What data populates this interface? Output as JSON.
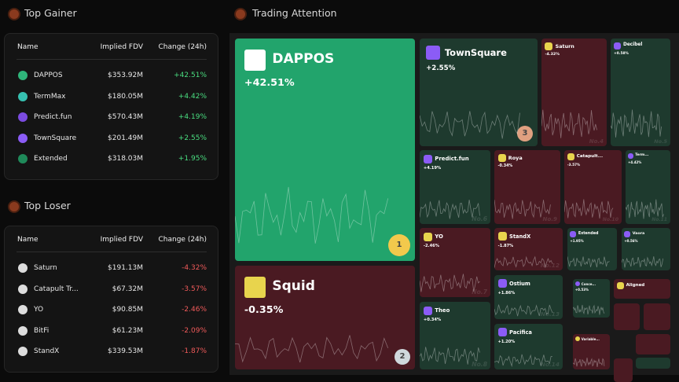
{
  "gainer": {
    "title": "Top Gainer",
    "columns": [
      "Name",
      "Implied FDV",
      "Change (24h)"
    ],
    "rows": [
      [
        "DAPPOS",
        "$353.92M",
        "+42.51%"
      ],
      [
        "TermMax",
        "$180.05M",
        "+4.42%"
      ],
      [
        "Predict.fun",
        "$570.43M",
        "+4.19%"
      ],
      [
        "TownSquare",
        "$201.49M",
        "+2.55%"
      ],
      [
        "Extended",
        "$318.03M",
        "+1.95%"
      ]
    ]
  },
  "loser": {
    "title": "Top Loser",
    "columns": [
      "Name",
      "Implied FDV",
      "Change (24h)"
    ],
    "rows": [
      [
        "Saturn",
        "$191.13M",
        "-4.32%"
      ],
      [
        "Catapult Tr...",
        "$67.32M",
        "-3.57%"
      ],
      [
        "YO",
        "$90.85M",
        "-2.46%"
      ],
      [
        "BitFi",
        "$61.23M",
        "-2.09%"
      ],
      [
        "StandX",
        "$339.53M",
        "-1.87%"
      ]
    ]
  },
  "attention": {
    "title": "Trading Attention",
    "tiles": [
      {
        "name": "DAPPOS",
        "change": "+42.51%",
        "badge": "1",
        "trend": "up"
      },
      {
        "name": "Squid",
        "change": "-0.35%",
        "badge": "2",
        "trend": "down"
      },
      {
        "name": "TownSquare",
        "change": "+2.55%",
        "badge": "3",
        "trend": "up"
      },
      {
        "name": "Saturn",
        "change": "-4.32%",
        "rank": "No.4",
        "trend": "down"
      },
      {
        "name": "Decibel",
        "change": "+0.58%",
        "rank": "No.5",
        "trend": "up"
      },
      {
        "name": "Predict.fun",
        "change": "+4.19%",
        "rank": "No.6",
        "trend": "up"
      },
      {
        "name": "YO",
        "change": "-2.46%",
        "rank": "No.7",
        "trend": "down"
      },
      {
        "name": "Theo",
        "change": "+0.34%",
        "rank": "No.8",
        "trend": "up"
      },
      {
        "name": "Roya",
        "change": "-0.34%",
        "rank": "No.9",
        "trend": "down"
      },
      {
        "name": "Catapult...",
        "change": "-3.57%",
        "rank": "No.10",
        "trend": "down"
      },
      {
        "name": "Term...",
        "change": "+4.42%",
        "rank": "No.11",
        "trend": "up"
      },
      {
        "name": "StandX",
        "change": "-1.87%",
        "rank": "No.12",
        "trend": "down"
      },
      {
        "name": "Ostium",
        "change": "+1.86%",
        "rank": "No.13",
        "trend": "up"
      },
      {
        "name": "Pacifica",
        "change": "+1.20%",
        "rank": "No.14",
        "trend": "up"
      },
      {
        "name": "Extended",
        "change": "+1.95%",
        "trend": "up"
      },
      {
        "name": "Vaora",
        "change": "+0.56%",
        "trend": "up"
      },
      {
        "name": "Conce...",
        "change": "+0.53%",
        "trend": "up"
      },
      {
        "name": "Aligned",
        "trend": "down"
      },
      {
        "name": "Variable...",
        "trend": "down"
      }
    ]
  }
}
